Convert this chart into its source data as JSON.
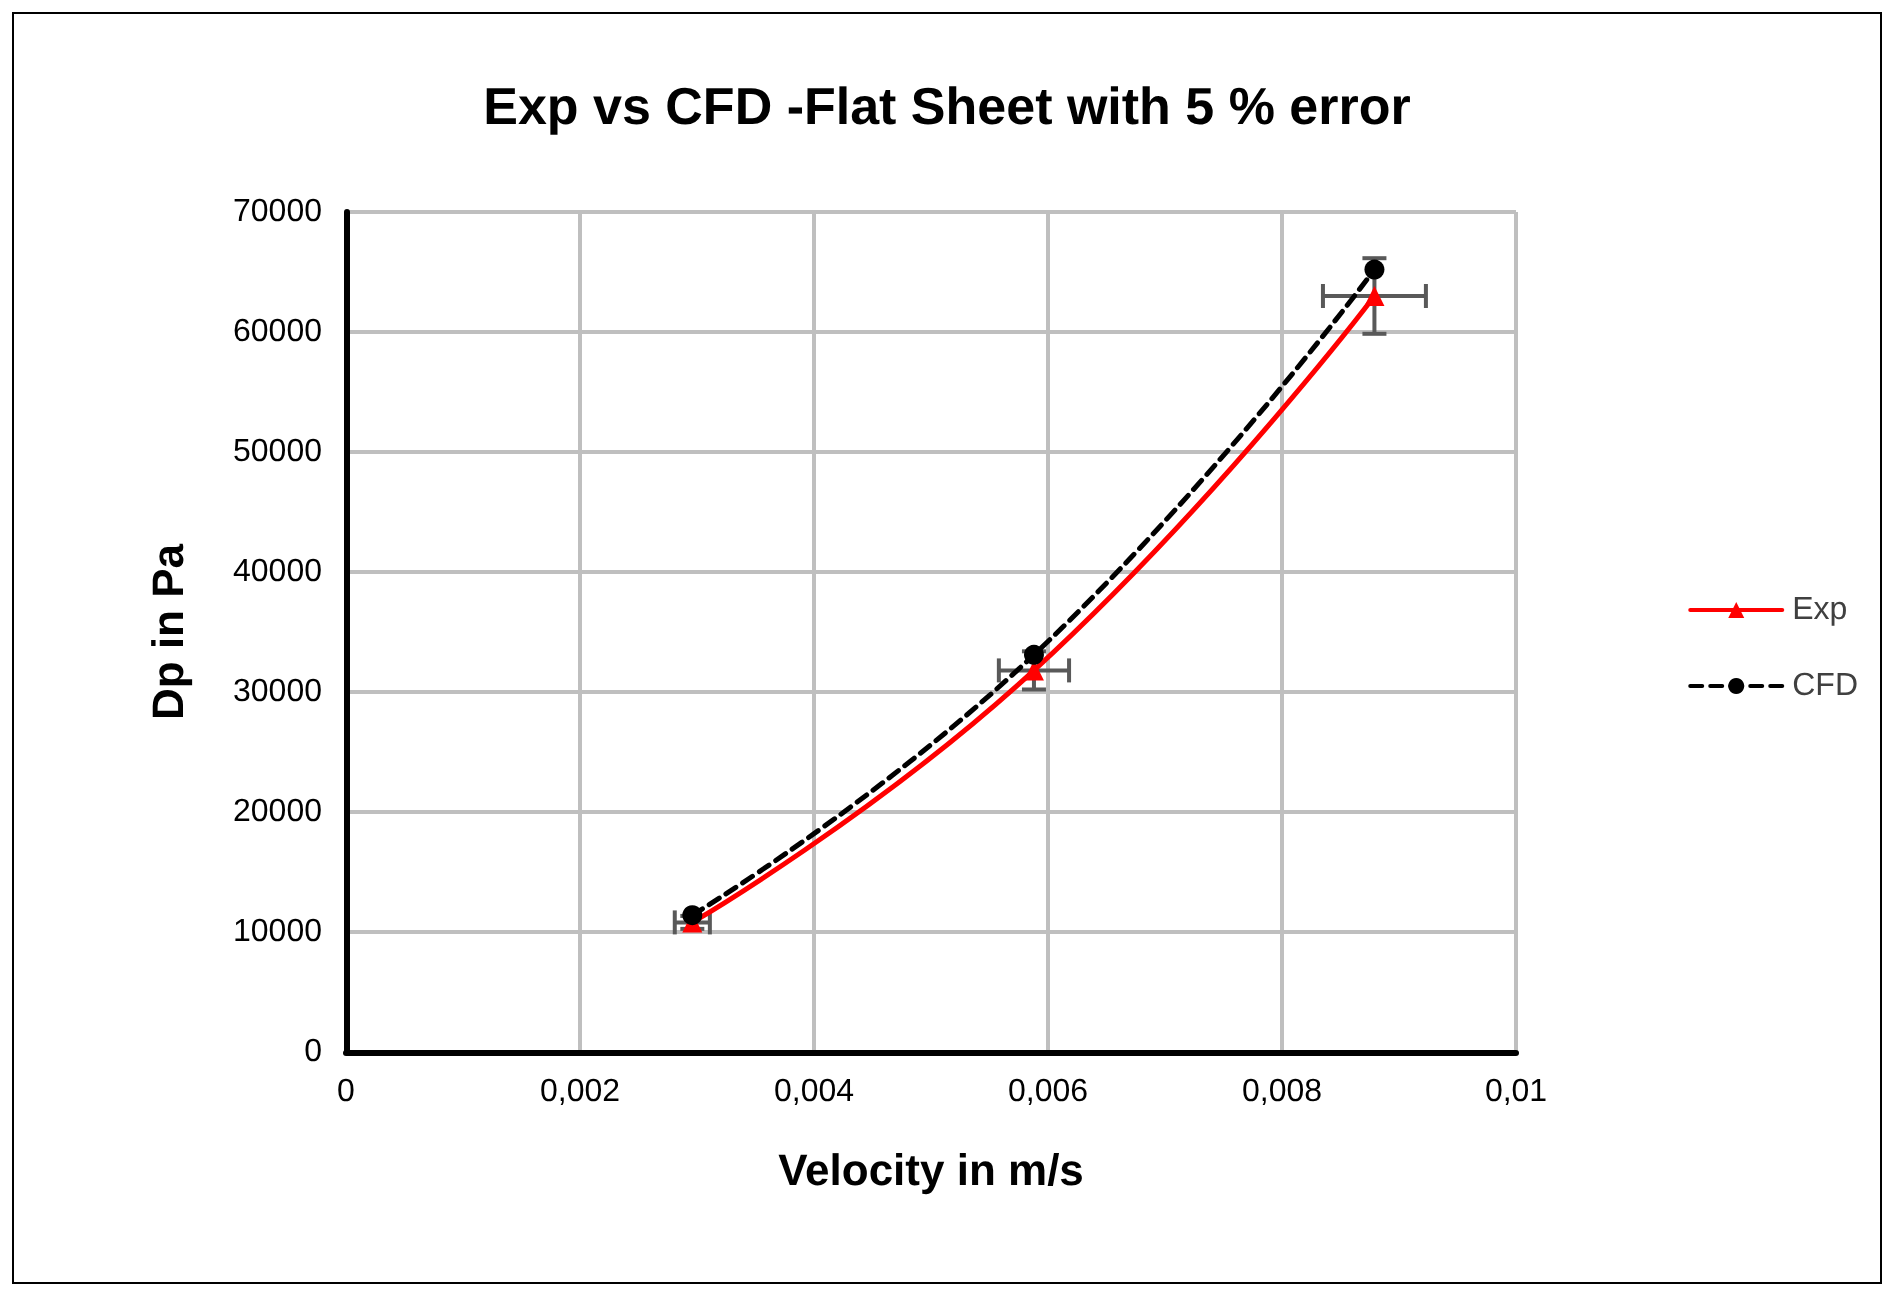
{
  "chart_data": {
    "type": "line",
    "title": "Exp vs CFD -Flat Sheet with 5 % error",
    "xlabel": "Velocity in m/s",
    "ylabel": "Dp in Pa",
    "xlim": [
      0,
      0.01
    ],
    "xticks": [
      0,
      {
        "value": 0.002,
        "label": "0,002"
      },
      {
        "value": 0.004,
        "label": "0,004"
      },
      {
        "value": 0.006,
        "label": "0,006"
      },
      {
        "value": 0.008,
        "label": "0,008"
      },
      {
        "value": 0.01,
        "label": "0,01"
      }
    ],
    "ylim": [
      0,
      70000
    ],
    "yticks": [
      0,
      10000,
      20000,
      30000,
      40000,
      50000,
      60000,
      70000
    ],
    "grid": true,
    "legend": "right",
    "series": [
      {
        "name": "Exp",
        "color": "#ff0000",
        "x": [
          0.00296,
          0.00588,
          0.00879
        ],
        "values": [
          10800,
          31800,
          63000
        ],
        "marker": "triangle",
        "line_style": "solid",
        "errors": [
          540,
          1590,
          3150
        ],
        "xerrors": [
          0.00015,
          0.0003,
          0.00044
        ]
      },
      {
        "name": "CFD",
        "color": "#000000",
        "x": [
          0.00296,
          0.00588,
          0.00879
        ],
        "values": [
          11400,
          33100,
          65200
        ],
        "marker": "circle",
        "line_style": "dashed"
      }
    ]
  }
}
